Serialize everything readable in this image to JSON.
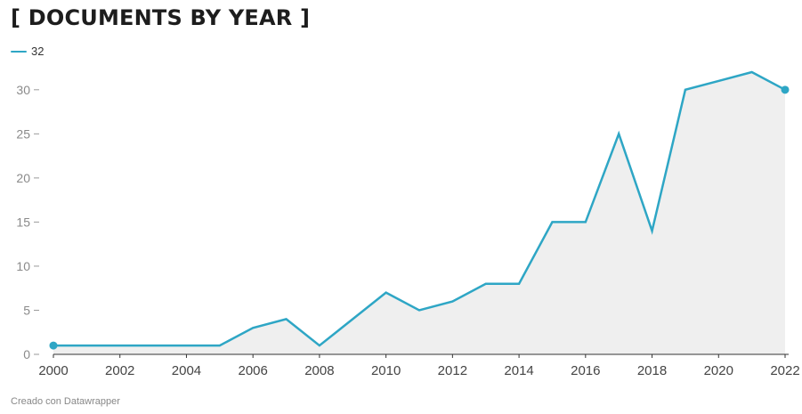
{
  "title": "[ DOCUMENTS BY YEAR ]",
  "legend_label": "32",
  "credit": "Creado con Datawrapper",
  "colors": {
    "line": "#2ea6c5",
    "area": "#efefef",
    "title": "#1d1d1d",
    "axis_labels": "#8a8a8a"
  },
  "chart_data": {
    "type": "area",
    "title": "[ DOCUMENTS BY YEAR ]",
    "xlabel": "",
    "ylabel": "",
    "x": [
      2000,
      2001,
      2002,
      2003,
      2004,
      2005,
      2006,
      2007,
      2008,
      2009,
      2010,
      2011,
      2012,
      2013,
      2014,
      2015,
      2016,
      2017,
      2018,
      2019,
      2020,
      2021,
      2022
    ],
    "series": [
      {
        "name": "32",
        "values": [
          1,
          1,
          1,
          1,
          1,
          1,
          3,
          4,
          1,
          4,
          7,
          5,
          6,
          8,
          8,
          15,
          15,
          25,
          14,
          30,
          31,
          32,
          30
        ]
      }
    ],
    "xlim": [
      2000,
      2022
    ],
    "ylim": [
      0,
      32
    ],
    "x_ticks": [
      2000,
      2002,
      2004,
      2006,
      2008,
      2010,
      2012,
      2014,
      2016,
      2018,
      2020,
      2022
    ],
    "y_ticks": [
      0,
      5,
      10,
      15,
      20,
      25,
      30
    ],
    "grid": false,
    "legend_position": "top-left",
    "endpoint_markers": true
  }
}
